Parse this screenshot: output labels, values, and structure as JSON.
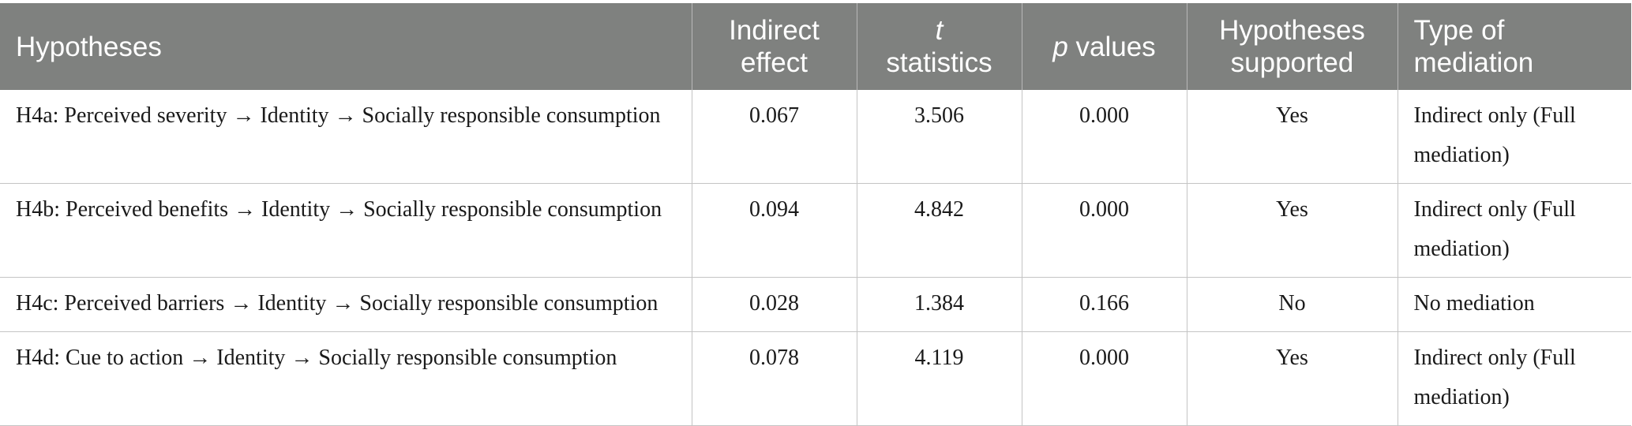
{
  "table": {
    "headers": {
      "hypotheses": "Hypotheses",
      "indirect_line1": "Indirect",
      "indirect_line2": "effect",
      "t_symbol": "t",
      "t_line2": "statistics",
      "p_symbol": "p",
      "p_rest": " values",
      "supported_line1": "Hypotheses",
      "supported_line2": "supported",
      "type_line1": "Type of",
      "type_line2": "mediation"
    },
    "rows": [
      {
        "hypothesis": "H4a: Perceived severity → Identity → Socially responsible consumption",
        "indirect_effect": "0.067",
        "t_statistics": "3.506",
        "p_values": "0.000",
        "supported": "Yes",
        "type_of_mediation": "Indirect only (Full mediation)"
      },
      {
        "hypothesis": "H4b: Perceived benefits → Identity → Socially responsible consumption",
        "indirect_effect": "0.094",
        "t_statistics": "4.842",
        "p_values": "0.000",
        "supported": "Yes",
        "type_of_mediation": "Indirect only (Full mediation)"
      },
      {
        "hypothesis": "H4c: Perceived barriers → Identity → Socially responsible consumption",
        "indirect_effect": "0.028",
        "t_statistics": "1.384",
        "p_values": "0.166",
        "supported": "No",
        "type_of_mediation": "No mediation"
      },
      {
        "hypothesis": "H4d: Cue to action → Identity → Socially responsible consumption",
        "indirect_effect": "0.078",
        "t_statistics": "4.119",
        "p_values": "0.000",
        "supported": "Yes",
        "type_of_mediation": "Indirect only (Full mediation)"
      }
    ]
  },
  "colors": {
    "header_background": "#7f817f",
    "header_text": "#ffffff",
    "grid_lines": "#c4c4c4",
    "body_text": "#1a1a1a"
  }
}
